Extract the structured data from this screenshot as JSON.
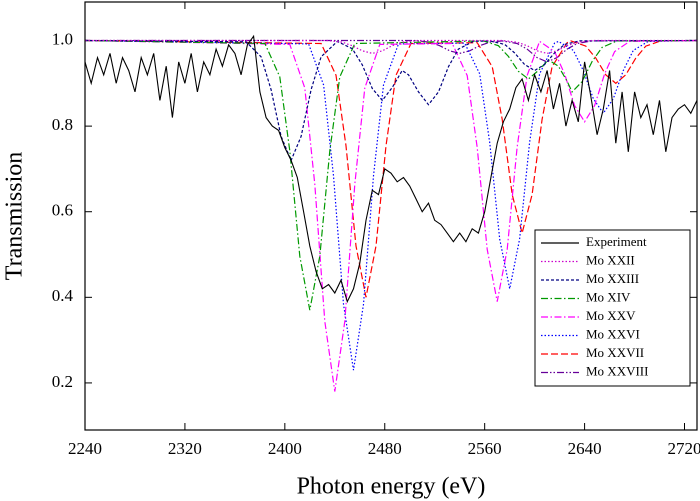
{
  "chart_data": {
    "type": "line",
    "x_label": "Photon energy (eV)",
    "y_label": "Transmission",
    "xlim": [
      2240,
      2730
    ],
    "ylim": [
      0.09,
      1.09
    ],
    "xticks": [
      2240,
      2320,
      2400,
      2480,
      2560,
      2640,
      2720
    ],
    "yticks": [
      0.2,
      0.4,
      0.6,
      0.8,
      {
        "value": 1.0,
        "label": "1.0"
      }
    ],
    "legend": "lower right",
    "series": [
      {
        "name": "Experiment",
        "color": "#000000",
        "line_style": "solid",
        "x": [
          2240,
          2245,
          2250,
          2255,
          2260,
          2265,
          2270,
          2275,
          2280,
          2285,
          2290,
          2295,
          2300,
          2305,
          2310,
          2315,
          2320,
          2325,
          2330,
          2335,
          2340,
          2345,
          2350,
          2355,
          2360,
          2365,
          2370,
          2375,
          2380,
          2385,
          2390,
          2395,
          2400,
          2405,
          2410,
          2415,
          2420,
          2425,
          2430,
          2435,
          2440,
          2445,
          2450,
          2455,
          2460,
          2465,
          2470,
          2475,
          2480,
          2485,
          2490,
          2495,
          2500,
          2505,
          2510,
          2515,
          2520,
          2525,
          2530,
          2535,
          2540,
          2545,
          2550,
          2555,
          2560,
          2565,
          2570,
          2575,
          2580,
          2585,
          2590,
          2595,
          2600,
          2605,
          2610,
          2615,
          2620,
          2625,
          2630,
          2635,
          2640,
          2645,
          2650,
          2655,
          2660,
          2665,
          2670,
          2675,
          2680,
          2685,
          2690,
          2695,
          2700,
          2705,
          2710,
          2715,
          2720,
          2725,
          2730
        ],
        "values": [
          0.95,
          0.9,
          0.96,
          0.92,
          0.97,
          0.9,
          0.96,
          0.93,
          0.88,
          0.96,
          0.92,
          0.97,
          0.86,
          0.94,
          0.82,
          0.95,
          0.9,
          0.97,
          0.88,
          0.95,
          0.92,
          0.98,
          0.94,
          0.99,
          0.97,
          0.92,
          0.99,
          1.01,
          0.88,
          0.82,
          0.8,
          0.79,
          0.75,
          0.72,
          0.68,
          0.6,
          0.52,
          0.46,
          0.42,
          0.43,
          0.41,
          0.44,
          0.39,
          0.42,
          0.48,
          0.58,
          0.65,
          0.64,
          0.7,
          0.69,
          0.67,
          0.68,
          0.66,
          0.63,
          0.6,
          0.62,
          0.58,
          0.57,
          0.55,
          0.53,
          0.55,
          0.53,
          0.56,
          0.55,
          0.6,
          0.68,
          0.76,
          0.81,
          0.84,
          0.89,
          0.91,
          0.86,
          0.92,
          0.88,
          0.93,
          0.84,
          0.9,
          0.8,
          0.86,
          0.81,
          0.95,
          0.87,
          0.78,
          0.84,
          0.93,
          0.76,
          0.88,
          0.74,
          0.88,
          0.82,
          0.85,
          0.78,
          0.86,
          0.74,
          0.82,
          0.84,
          0.85,
          0.83,
          0.86
        ]
      },
      {
        "name": "Mo XXII",
        "color": "#cc00cc",
        "line_style": "dotted",
        "x": [
          2240,
          2434,
          2446,
          2454,
          2462,
          2470,
          2478,
          2486,
          2494,
          2506,
          2574,
          2586,
          2594,
          2602,
          2610,
          2618,
          2626,
          2634,
          2646,
          2730
        ],
        "values": [
          1.0,
          1.0,
          0.996,
          0.988,
          0.976,
          0.97,
          0.976,
          0.988,
          0.996,
          1.0,
          1.0,
          0.996,
          0.988,
          0.976,
          0.97,
          0.976,
          0.988,
          0.996,
          1.0,
          1.0
        ]
      },
      {
        "name": "Mo XXIII",
        "color": "#000080",
        "line_style": "shortdash",
        "x": [
          2240,
          2369,
          2381,
          2389,
          2397,
          2405,
          2413,
          2421,
          2429,
          2442,
          2454,
          2462,
          2470,
          2478,
          2486,
          2494,
          2499,
          2507,
          2515,
          2523,
          2531,
          2539,
          2551,
          2564,
          2576,
          2584,
          2592,
          2600,
          2608,
          2616,
          2624,
          2636,
          2730
        ],
        "values": [
          1.0,
          0.997,
          0.962,
          0.885,
          0.776,
          0.72,
          0.776,
          0.885,
          0.962,
          0.998,
          0.981,
          0.943,
          0.888,
          0.86,
          0.89,
          0.93,
          0.92,
          0.88,
          0.85,
          0.88,
          0.939,
          0.98,
          0.998,
          0.999,
          0.991,
          0.971,
          0.944,
          0.93,
          0.944,
          0.971,
          0.991,
          0.999,
          1.0
        ]
      },
      {
        "name": "Mo XIV",
        "color": "#009900",
        "line_style": "dashdot",
        "x": [
          2240,
          2384,
          2396,
          2404,
          2412,
          2420,
          2428,
          2436,
          2444,
          2456,
          2559,
          2571,
          2579,
          2587,
          2595,
          2603,
          2611,
          2619,
          2626,
          2630,
          2638,
          2646,
          2654,
          2666,
          2730
        ],
        "values": [
          1.0,
          0.993,
          0.915,
          0.742,
          0.496,
          0.37,
          0.496,
          0.742,
          0.915,
          0.993,
          0.999,
          0.988,
          0.963,
          0.928,
          0.91,
          0.93,
          0.955,
          0.94,
          0.905,
          0.88,
          0.904,
          0.951,
          0.984,
          0.999,
          1.0
        ]
      },
      {
        "name": "Mo XXV",
        "color": "#ff00ff",
        "line_style": "dashdot",
        "x": [
          2240,
          2404,
          2416,
          2424,
          2432,
          2440,
          2448,
          2456,
          2464,
          2476,
          2534,
          2546,
          2554,
          2562,
          2570,
          2578,
          2586,
          2594,
          2604,
          2616,
          2624,
          2632,
          2640,
          2648,
          2656,
          2664,
          2676,
          2730
        ],
        "values": [
          1.0,
          0.991,
          0.889,
          0.664,
          0.344,
          0.18,
          0.344,
          0.664,
          0.889,
          0.991,
          0.993,
          0.918,
          0.75,
          0.512,
          0.39,
          0.512,
          0.75,
          0.918,
          0.998,
          0.974,
          0.922,
          0.848,
          0.81,
          0.848,
          0.922,
          0.974,
          0.998,
          1.0
        ]
      },
      {
        "name": "Mo XXVI",
        "color": "#0000ff",
        "line_style": "dotted",
        "x": [
          2240,
          2419,
          2431,
          2439,
          2447,
          2455,
          2463,
          2471,
          2479,
          2491,
          2544,
          2556,
          2564,
          2572,
          2580,
          2588,
          2596,
          2604,
          2616,
          2619,
          2631,
          2639,
          2647,
          2655,
          2663,
          2671,
          2679,
          2691,
          2730
        ],
        "values": [
          1.0,
          0.992,
          0.896,
          0.684,
          0.384,
          0.23,
          0.384,
          0.684,
          0.896,
          0.992,
          0.994,
          0.922,
          0.762,
          0.536,
          0.42,
          0.536,
          0.762,
          0.922,
          0.994,
          0.998,
          0.977,
          0.93,
          0.864,
          0.83,
          0.864,
          0.93,
          0.977,
          0.998,
          1.0
        ]
      },
      {
        "name": "Mo XXVII",
        "color": "#ff0000",
        "line_style": "dashed",
        "x": [
          2240,
          2429,
          2441,
          2449,
          2457,
          2465,
          2473,
          2481,
          2489,
          2501,
          2554,
          2566,
          2574,
          2582,
          2590,
          2598,
          2606,
          2614,
          2626,
          2629,
          2641,
          2649,
          2657,
          2665,
          2673,
          2681,
          2689,
          2701,
          2730
        ],
        "values": [
          1.0,
          0.993,
          0.919,
          0.754,
          0.52,
          0.4,
          0.52,
          0.754,
          0.919,
          0.993,
          0.995,
          0.939,
          0.816,
          0.64,
          0.55,
          0.64,
          0.816,
          0.939,
          0.995,
          0.999,
          0.987,
          0.959,
          0.92,
          0.9,
          0.92,
          0.959,
          0.987,
          0.999,
          1.0
        ]
      },
      {
        "name": "Mo XXVIII",
        "color": "#660099",
        "line_style": "dashdotdot",
        "x": [
          2240,
          2504,
          2516,
          2524,
          2532,
          2540,
          2548,
          2556,
          2564,
          2574,
          2586,
          2594,
          2602,
          2610,
          2618,
          2626,
          2634,
          2646,
          2730
        ],
        "values": [
          1.0,
          1.0,
          0.996,
          0.988,
          0.976,
          0.97,
          0.976,
          0.988,
          0.996,
          0.999,
          0.993,
          0.98,
          0.96,
          0.95,
          0.96,
          0.98,
          0.993,
          0.999,
          1.0
        ]
      }
    ]
  }
}
